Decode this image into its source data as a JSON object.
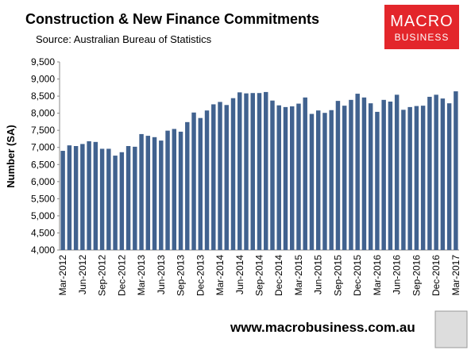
{
  "chart_data": {
    "type": "bar",
    "title": "Construction & New Finance Commitments",
    "source": "Source: Australian Bureau of Statistics",
    "ylabel": "Number (SA)",
    "logo_top": "MACRO",
    "logo_bottom": "BUSINESS",
    "website": "www.macrobusiness.com.au",
    "categories": [
      "Mar-2012",
      null,
      null,
      "Jun-2012",
      null,
      null,
      "Sep-2012",
      null,
      null,
      "Dec-2012",
      null,
      null,
      "Mar-2013",
      null,
      null,
      "Jun-2013",
      null,
      null,
      "Sep-2013",
      null,
      null,
      "Dec-2013",
      null,
      null,
      "Mar-2014",
      null,
      null,
      "Jun-2014",
      null,
      null,
      "Sep-2014",
      null,
      null,
      "Dec-2014",
      null,
      null,
      "Mar-2015",
      null,
      null,
      "Jun-2015",
      null,
      null,
      "Sep-2015",
      null,
      null,
      "Dec-2015",
      null,
      null,
      "Mar-2016",
      null,
      null,
      "Jun-2016",
      null,
      null,
      "Sep-2016",
      null,
      null,
      "Dec-2016",
      null,
      null,
      "Mar-2017"
    ],
    "values": [
      6900,
      7060,
      7040,
      7100,
      7180,
      7160,
      6960,
      6960,
      6760,
      6860,
      7040,
      7020,
      7390,
      7340,
      7300,
      7200,
      7490,
      7540,
      7460,
      7740,
      8020,
      7860,
      8080,
      8260,
      8330,
      8240,
      8440,
      8610,
      8580,
      8590,
      8590,
      8620,
      8370,
      8230,
      8180,
      8200,
      8280,
      8460,
      7980,
      8080,
      8010,
      8090,
      8360,
      8220,
      8390,
      8570,
      8460,
      8290,
      8040,
      8390,
      8340,
      8540,
      8100,
      8180,
      8210,
      8220,
      8480,
      8540,
      8430,
      8290,
      8640
    ],
    "color": "#41628f",
    "ylim": [
      4000,
      9500
    ],
    "yticks": [
      {
        "value": 4000,
        "label": "4,000"
      },
      {
        "value": 4500,
        "label": "4,500"
      },
      {
        "value": 5000,
        "label": "5,000"
      },
      {
        "value": 5500,
        "label": "5,500"
      },
      {
        "value": 6000,
        "label": "6,000"
      },
      {
        "value": 6500,
        "label": "6,500"
      },
      {
        "value": 7000,
        "label": "7,000"
      },
      {
        "value": 7500,
        "label": "7,500"
      },
      {
        "value": 8000,
        "label": "8,000"
      },
      {
        "value": 8500,
        "label": "8,500"
      },
      {
        "value": 9000,
        "label": "9,000"
      },
      {
        "value": 9500,
        "label": "9,500"
      }
    ],
    "grid": false
  }
}
